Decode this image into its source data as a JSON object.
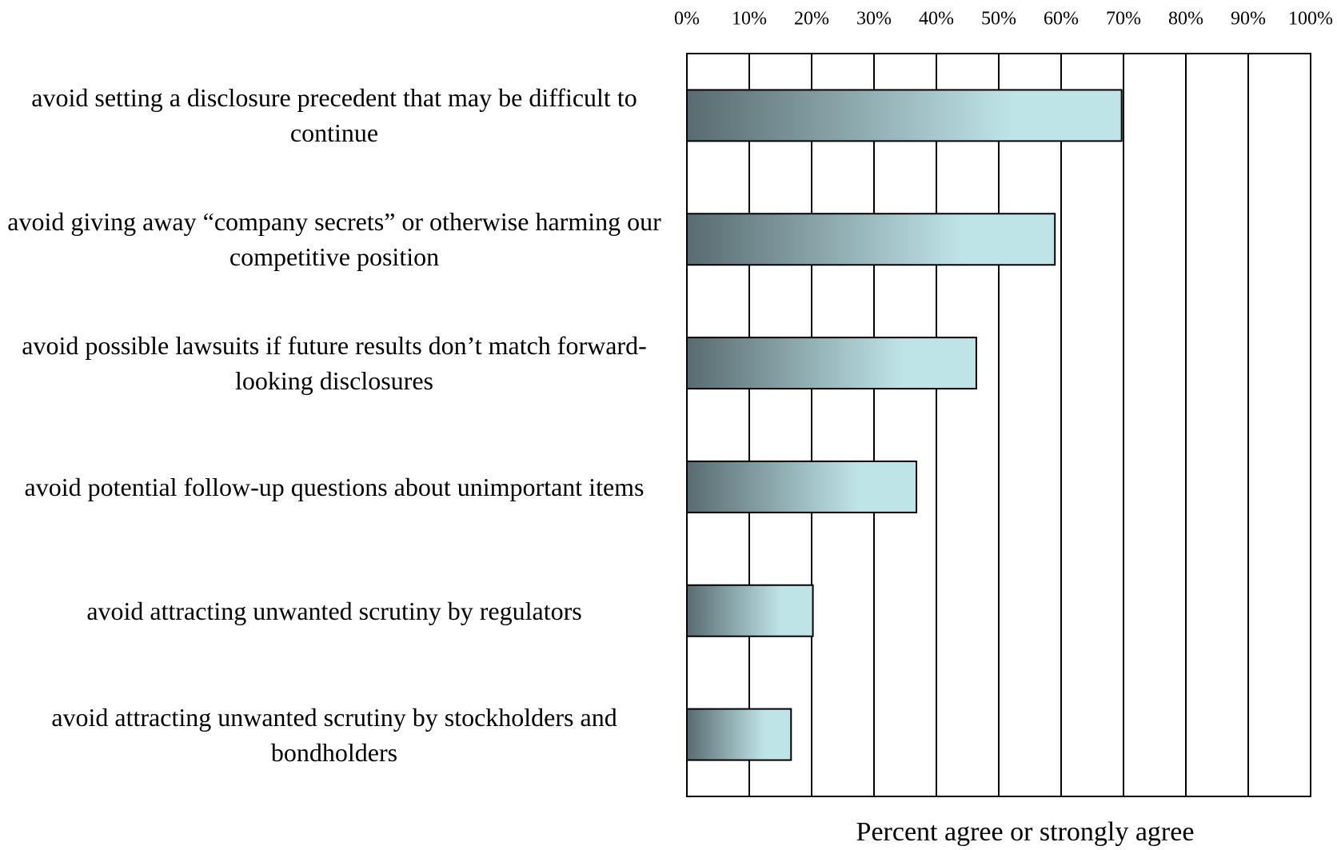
{
  "chart_data": {
    "type": "barh",
    "xlabel": "Percent agree or strongly agree",
    "categories": [
      "avoid setting a disclosure precedent that may be difficult to continue",
      "avoid giving away “company secrets” or otherwise harming our competitive position",
      "avoid possible lawsuits if future results don’t match forward-looking disclosures",
      "avoid potential follow-up questions about unimportant items",
      "avoid attracting unwanted scrutiny by regulators",
      "avoid attracting unwanted scrutiny by stockholders and bondholders"
    ],
    "values": [
      69.7,
      59.0,
      46.4,
      36.8,
      20.2,
      16.7
    ],
    "color": [
      "#586b70",
      "#bfe4e8"
    ],
    "xlim": [
      0,
      100
    ],
    "xticks": [
      {
        "value": 0,
        "label": "0%"
      },
      {
        "value": 10,
        "label": "10%"
      },
      {
        "value": 20,
        "label": "20%"
      },
      {
        "value": 30,
        "label": "30%"
      },
      {
        "value": 40,
        "label": "40%"
      },
      {
        "value": 50,
        "label": "50%"
      },
      {
        "value": 60,
        "label": "60%"
      },
      {
        "value": 70,
        "label": "70%"
      },
      {
        "value": 80,
        "label": "80%"
      },
      {
        "value": 90,
        "label": "90%"
      },
      {
        "value": 100,
        "label": "100%"
      }
    ],
    "grid": true
  }
}
